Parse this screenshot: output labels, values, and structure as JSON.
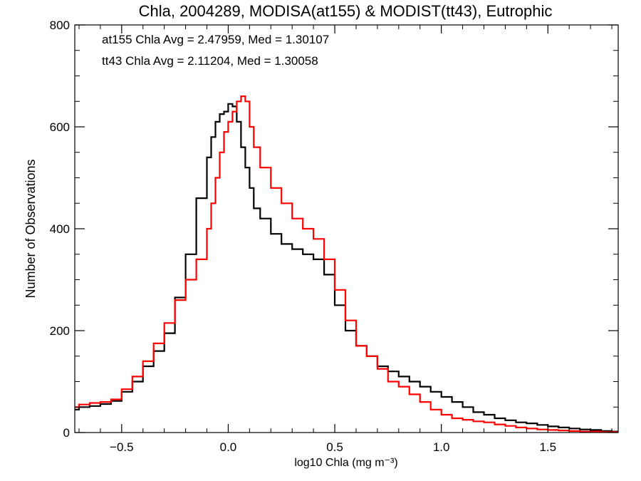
{
  "chart_data": {
    "type": "line",
    "step": true,
    "title": "Chla, 2004289, MODISA(at155) & MODIST(tt43), Eutrophic",
    "xlabel": "log10 Chla (mg m⁻³)",
    "ylabel": "Number of Observations",
    "xlim": [
      -0.72,
      1.83
    ],
    "ylim": [
      0,
      800
    ],
    "xticks": [
      -0.5,
      0.0,
      0.5,
      1.0,
      1.5
    ],
    "xtick_labels": [
      "−0.5",
      "0.0",
      "0.5",
      "1.0",
      "1.5"
    ],
    "yticks": [
      0,
      200,
      400,
      600,
      800
    ],
    "ytick_labels": [
      "0",
      "200",
      "400",
      "600",
      "800"
    ],
    "annotations": [
      {
        "text": "at155 Chla Avg = 2.47959, Med = 1.30107",
        "color": "#000000"
      },
      {
        "text": "tt43 Chla Avg = 2.11204, Med = 1.30058",
        "color": "#ff0000"
      }
    ],
    "series": [
      {
        "color": "#000000",
        "x": [
          -0.72,
          -0.7,
          -0.65,
          -0.6,
          -0.55,
          -0.5,
          -0.45,
          -0.4,
          -0.35,
          -0.3,
          -0.25,
          -0.2,
          -0.15,
          -0.1,
          -0.08,
          -0.06,
          -0.04,
          -0.02,
          0.0,
          0.02,
          0.04,
          0.06,
          0.08,
          0.1,
          0.12,
          0.15,
          0.2,
          0.25,
          0.3,
          0.35,
          0.4,
          0.45,
          0.5,
          0.55,
          0.6,
          0.65,
          0.7,
          0.75,
          0.8,
          0.85,
          0.9,
          0.95,
          1.0,
          1.05,
          1.1,
          1.15,
          1.2,
          1.25,
          1.3,
          1.35,
          1.4,
          1.45,
          1.5,
          1.55,
          1.6,
          1.65,
          1.7,
          1.75,
          1.8,
          1.83
        ],
        "y": [
          45,
          50,
          52,
          56,
          62,
          80,
          100,
          130,
          160,
          195,
          265,
          350,
          460,
          540,
          580,
          610,
          625,
          630,
          645,
          640,
          610,
          560,
          520,
          480,
          440,
          420,
          390,
          370,
          360,
          350,
          340,
          310,
          250,
          200,
          170,
          150,
          130,
          120,
          110,
          100,
          90,
          80,
          70,
          60,
          50,
          40,
          35,
          28,
          24,
          20,
          18,
          15,
          12,
          10,
          8,
          6,
          5,
          3,
          2,
          2
        ]
      },
      {
        "color": "#ff0000",
        "x": [
          -0.72,
          -0.7,
          -0.65,
          -0.6,
          -0.55,
          -0.5,
          -0.45,
          -0.4,
          -0.35,
          -0.3,
          -0.25,
          -0.2,
          -0.15,
          -0.1,
          -0.08,
          -0.06,
          -0.04,
          -0.02,
          0.0,
          0.02,
          0.04,
          0.06,
          0.08,
          0.1,
          0.12,
          0.15,
          0.2,
          0.25,
          0.3,
          0.35,
          0.4,
          0.45,
          0.5,
          0.55,
          0.6,
          0.65,
          0.7,
          0.75,
          0.8,
          0.85,
          0.9,
          0.95,
          1.0,
          1.05,
          1.1,
          1.15,
          1.2,
          1.25,
          1.3,
          1.35,
          1.4,
          1.45,
          1.5,
          1.55,
          1.6,
          1.65,
          1.7,
          1.75,
          1.8,
          1.83
        ],
        "y": [
          50,
          55,
          58,
          60,
          65,
          85,
          110,
          140,
          175,
          215,
          260,
          300,
          340,
          400,
          450,
          500,
          550,
          590,
          610,
          630,
          650,
          660,
          650,
          600,
          560,
          520,
          480,
          450,
          420,
          400,
          380,
          340,
          280,
          220,
          170,
          150,
          125,
          100,
          90,
          75,
          60,
          45,
          35,
          28,
          25,
          22,
          20,
          16,
          13,
          10,
          8,
          6,
          5,
          4,
          3,
          2,
          2,
          1,
          1,
          1
        ]
      }
    ]
  }
}
